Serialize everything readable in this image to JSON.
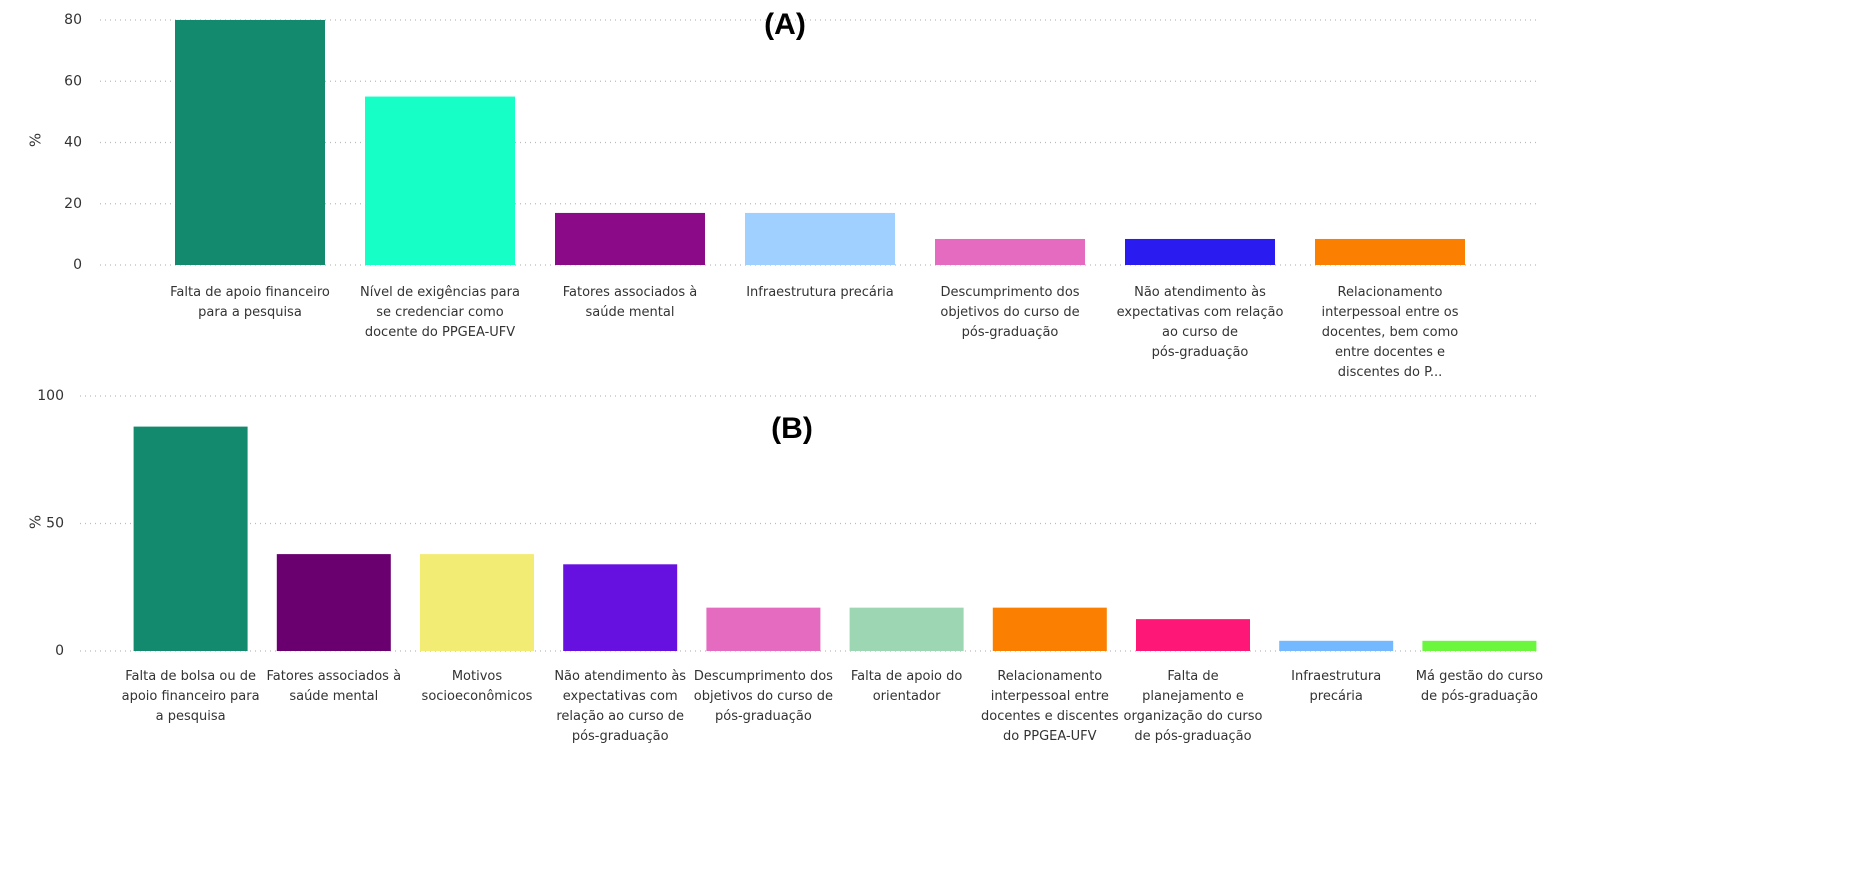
{
  "chart_data": [
    {
      "type": "bar",
      "title": "(A)",
      "y_label": "%",
      "categories": [
        "Falta de apoio financeiro para a pesquisa",
        "Nível de exigências para se credenciar como docente do PPGEA-UFV",
        "Fatores associados à saúde mental",
        "Infraestrutura precária",
        "Descumprimento dos objetivos do curso de pós-graduação",
        "Não atendimento às expectativas com relação ao curso de pós-graduação",
        "Relacionamento interpessoal entre os docentes, bem como entre docentes e discentes do P..."
      ],
      "values": [
        80,
        55,
        17,
        17,
        8.5,
        8.5,
        8.5
      ],
      "colors": [
        "#138a6e",
        "#15ffc6",
        "#8b0a87",
        "#9fd0ff",
        "#e46bbf",
        "#2a1bf0",
        "#fb7f00"
      ],
      "ylim": [
        0,
        80
      ],
      "yticks": [
        0,
        20,
        40,
        60,
        80
      ],
      "grid": true
    },
    {
      "type": "bar",
      "title": "(B)",
      "y_label": "%",
      "categories": [
        "Falta de bolsa ou de apoio financeiro para a pesquisa",
        "Fatores associados à saúde mental",
        "Motivos socioeconômicos",
        "Não atendimento às expectativas com relação ao curso de pós-graduação",
        "Descumprimento dos objetivos do curso de pós-graduação",
        "Falta de apoio do orientador",
        "Relacionamento interpessoal entre docentes e discentes do PPGEA-UFV",
        "Falta de planejamento e organização do curso de pós-graduação",
        "Infraestrutura precária",
        "Má gestão do curso de pós-graduação"
      ],
      "values": [
        88,
        38,
        38,
        34,
        17,
        17,
        17,
        12.5,
        4,
        4
      ],
      "colors": [
        "#138a6e",
        "#6a0070",
        "#f3ec74",
        "#6711e0",
        "#e46bbf",
        "#9dd6b2",
        "#fb7f00",
        "#ff1777",
        "#74b9ff",
        "#6cf73e"
      ],
      "ylim": [
        0,
        100
      ],
      "yticks": [
        0,
        50,
        100
      ],
      "grid": true
    }
  ]
}
